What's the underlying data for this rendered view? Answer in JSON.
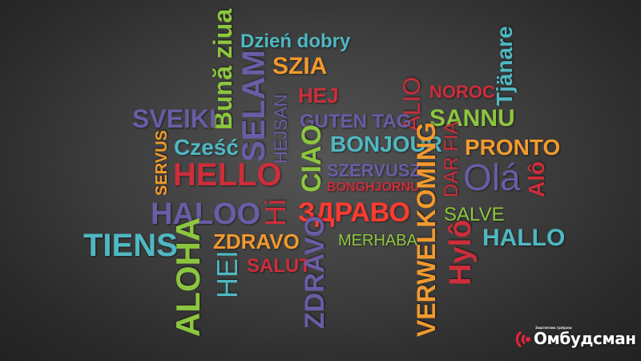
{
  "colors": {
    "background": "#3a3a3a",
    "teal": "#4fb8c2",
    "green": "#8cc63f",
    "purple": "#6b5ca5",
    "red": "#cc2e3a",
    "orange": "#f29a2e",
    "bright_red": "#ff3b2f"
  },
  "words": {
    "dzien_dobry": "Dzień dobry",
    "buna_ziua": "Bună ziua",
    "szia": "SZIA",
    "tjanare": "Tjänare",
    "noroc": "NOROC",
    "hej": "HEJ",
    "alio": "ALIO",
    "sannu": "SANNU",
    "sveiki": "SVEIKI",
    "selam": "SELAM",
    "hejsan": "HEJSAN",
    "guten_tag": "GUTEN TAG",
    "servus": "SERVUS",
    "czesc": "Cześć",
    "bonjour": "BONJOUR",
    "pronto": "PRONTO",
    "hello": "HELLO",
    "ciao": "CIAO",
    "szervusz": "SZERVUSZ",
    "bonghjornu": "BONGHJORNU",
    "dar_fia": "DAR FIA",
    "ola": "Olá",
    "alo": "Alô",
    "haloo": "HALOO",
    "hi": "Hi",
    "zdravo_cyr": "ЗДРАВО",
    "salve": "SALVE",
    "tiens": "TIENS",
    "zdravo": "ZDRAVO",
    "merhaba": "MERHABA",
    "verwelkoming": "VERWELKOMING",
    "hylo": "Hylô",
    "hallo": "HALLO",
    "aloha": "ALOHA",
    "hei": "HEI",
    "salut": "SALUT",
    "zdravo_vertical": "ZDRAVO"
  },
  "logo": {
    "brand": "Омбудсман",
    "tagline": "Заштитник грађана",
    "icon": "signal-waves-icon"
  }
}
